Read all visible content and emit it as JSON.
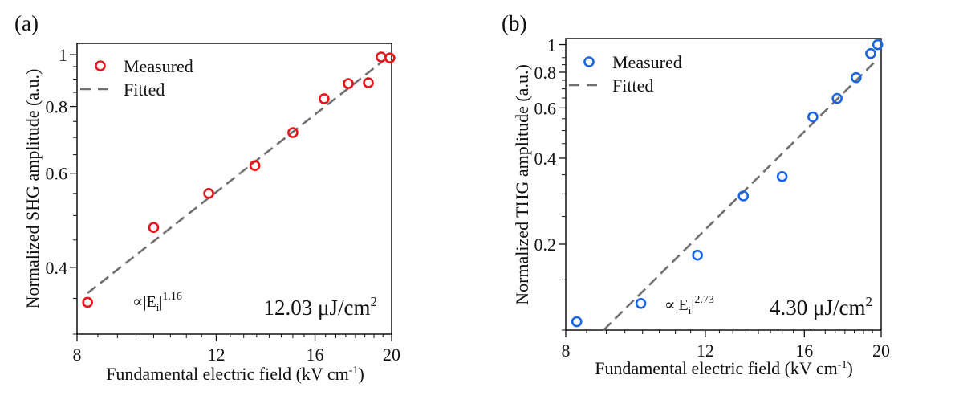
{
  "chart_data": [
    {
      "panel_label": "(a)",
      "type": "scatter",
      "xlabel": "Fundamental electric field (kV cm",
      "xlabel_sup": "-1",
      "xlabel_end": ")",
      "ylabel": "Normalized SHG amplitude (a.u.)",
      "xscale": "log",
      "yscale": "log",
      "xlim": [
        8,
        20
      ],
      "ylim": [
        0.3,
        1.05
      ],
      "xticks": [
        8,
        12,
        16,
        20
      ],
      "xtick_labels": [
        "8",
        "12",
        "16",
        "20"
      ],
      "yticks": [
        0.4,
        0.6,
        0.8,
        1
      ],
      "ytick_labels": [
        "0.4",
        "0.6",
        "0.8",
        "1"
      ],
      "grid": false,
      "legend_placement": "top-left",
      "color": "#e8141c",
      "fit_color": "#707070",
      "series": [
        {
          "name": "Measured",
          "kind": "markers",
          "x": [
            8.25,
            10.0,
            11.74,
            13.43,
            15.0,
            16.43,
            17.63,
            18.69,
            19.4,
            19.9
          ],
          "y": [
            0.344,
            0.475,
            0.55,
            0.62,
            0.715,
            0.827,
            0.883,
            0.886,
            0.99,
            0.986
          ]
        },
        {
          "name": "Fitted",
          "kind": "dashed-line",
          "x": [
            8.25,
            19.9
          ],
          "y": [
            0.358,
            0.996
          ]
        }
      ],
      "annotation": {
        "prefix": "∝|E",
        "sub": "i",
        "bar": "|",
        "sup": "1.16"
      },
      "fluence": {
        "value": "12.03 μJ/cm",
        "sup": "2"
      }
    },
    {
      "panel_label": "(b)",
      "type": "scatter",
      "xlabel": "Fundamental electric field (kV cm",
      "xlabel_sup": "-1",
      "xlabel_end": ")",
      "ylabel": "Normalized THG amplitude (a.u.)",
      "xscale": "log",
      "yscale": "log",
      "xlim": [
        8,
        20
      ],
      "ylim": [
        0.1,
        1.05
      ],
      "xticks": [
        8,
        12,
        16,
        20
      ],
      "xtick_labels": [
        "8",
        "12",
        "16",
        "20"
      ],
      "yticks": [
        0.2,
        0.4,
        0.6,
        0.8,
        1
      ],
      "ytick_labels": [
        "0.2",
        "0.4",
        "0.6",
        "0.8",
        "1"
      ],
      "grid": false,
      "legend_placement": "top-left",
      "color": "#1a64e6",
      "fit_color": "#707070",
      "series": [
        {
          "name": "Measured",
          "kind": "markers",
          "x": [
            8.26,
            9.95,
            11.73,
            13.4,
            15.0,
            16.4,
            17.6,
            18.6,
            19.4,
            19.8
          ],
          "y": [
            0.107,
            0.124,
            0.183,
            0.295,
            0.345,
            0.558,
            0.648,
            0.766,
            0.93,
            1.0
          ]
        },
        {
          "name": "Fitted",
          "kind": "dashed-line",
          "x": [
            8.93,
            19.8
          ],
          "y": [
            0.1,
            0.89
          ]
        }
      ],
      "annotation": {
        "prefix": "∝|E",
        "sub": "i",
        "bar": "|",
        "sup": "2.73"
      },
      "fluence": {
        "value": "4.30 μJ/cm",
        "sup": "2"
      }
    }
  ]
}
